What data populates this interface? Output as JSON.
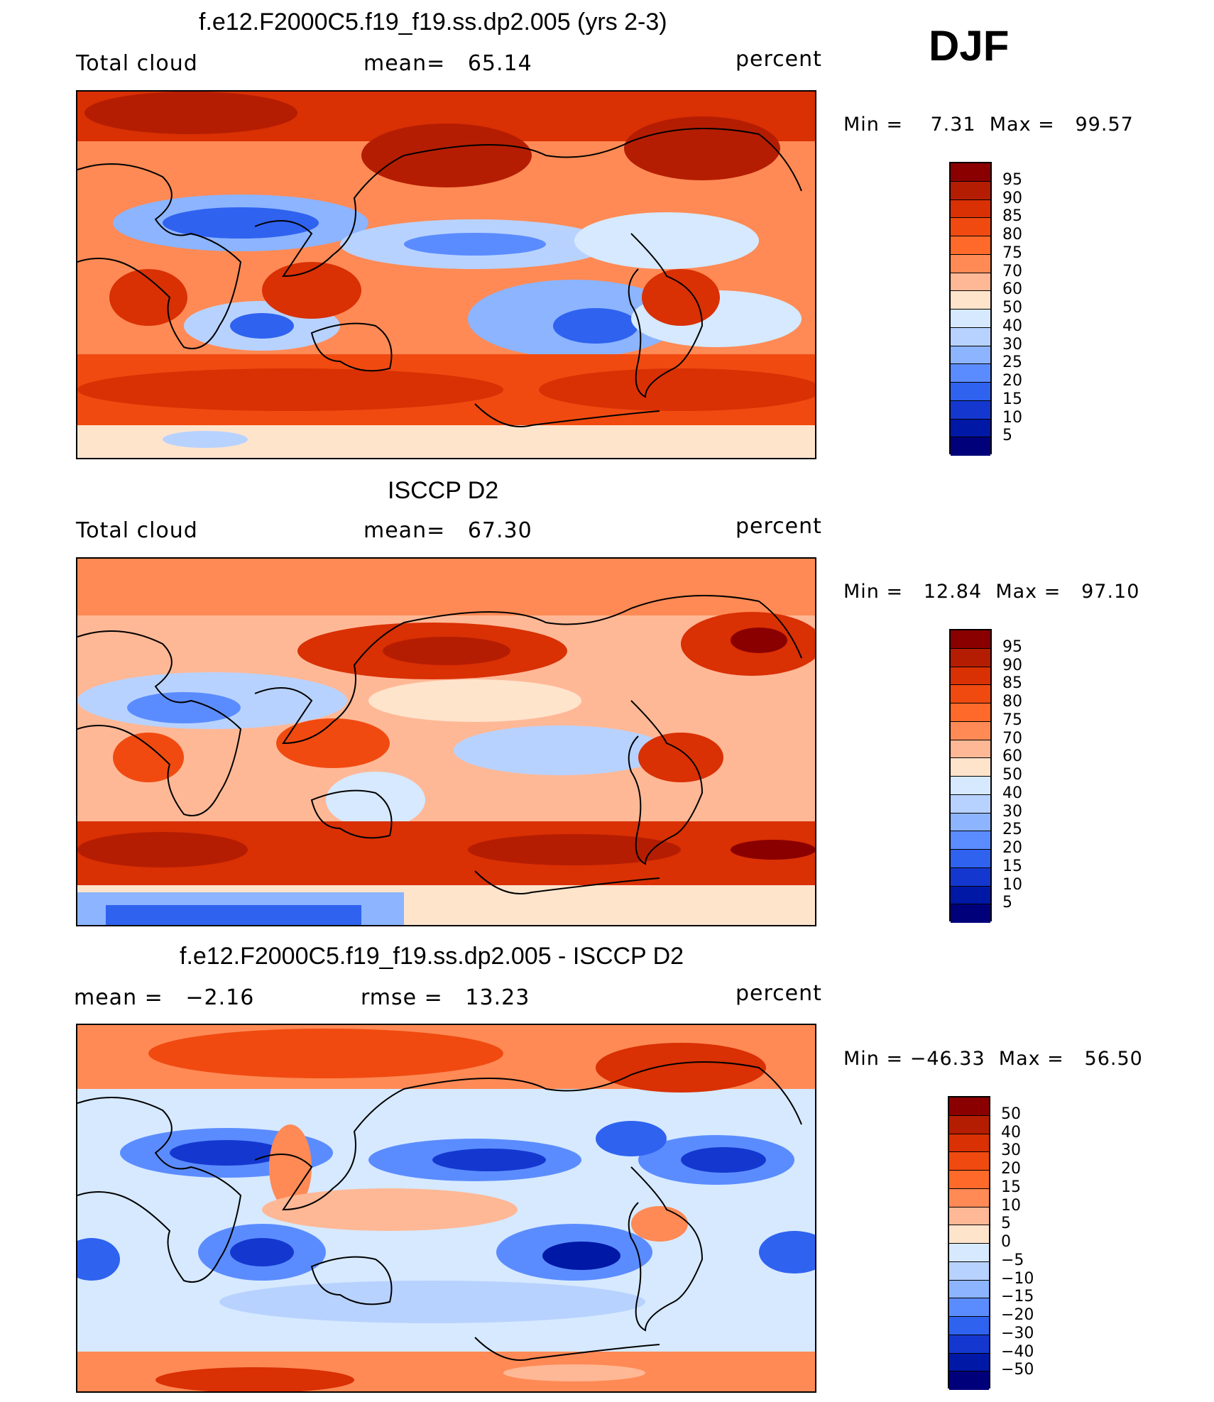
{
  "season": "DJF",
  "panels": [
    {
      "title": "f.e12.F2000C5.f19_f19.ss.dp2.005 (yrs 2-3)",
      "left_label": "Total cloud",
      "center_label": "mean=   65.14",
      "right_label": "percent",
      "minmax": "Min =    7.31  Max =   99.57",
      "colorbar": {
        "labels": [
          "95",
          "90",
          "85",
          "80",
          "75",
          "70",
          "60",
          "50",
          "40",
          "30",
          "25",
          "20",
          "15",
          "10",
          "5"
        ],
        "colors": [
          "#8a0000",
          "#b51d02",
          "#d93004",
          "#f04a10",
          "#ff6a2a",
          "#ff8a55",
          "#ffb896",
          "#ffe4cc",
          "#d6e9ff",
          "#b8d2ff",
          "#8cb4ff",
          "#5b8cff",
          "#2f62ef",
          "#1438cf",
          "#0018a6",
          "#00007a"
        ]
      }
    },
    {
      "title": "ISCCP D2",
      "left_label": "Total cloud",
      "center_label": "mean=   67.30",
      "right_label": "percent",
      "minmax": "Min =   12.84  Max =   97.10",
      "colorbar": {
        "labels": [
          "95",
          "90",
          "85",
          "80",
          "75",
          "70",
          "60",
          "50",
          "40",
          "30",
          "25",
          "20",
          "15",
          "10",
          "5"
        ],
        "colors": [
          "#8a0000",
          "#b51d02",
          "#d93004",
          "#f04a10",
          "#ff6a2a",
          "#ff8a55",
          "#ffb896",
          "#ffe4cc",
          "#d6e9ff",
          "#b8d2ff",
          "#8cb4ff",
          "#5b8cff",
          "#2f62ef",
          "#1438cf",
          "#0018a6",
          "#00007a"
        ]
      }
    },
    {
      "title": "f.e12.F2000C5.f19_f19.ss.dp2.005 - ISCCP D2",
      "left_label": "mean =   −2.16",
      "center_label": "rmse =   13.23",
      "right_label": "percent",
      "minmax": "Min = −46.33  Max =   56.50",
      "colorbar": {
        "labels": [
          "50",
          "40",
          "30",
          "20",
          "15",
          "10",
          "5",
          "0",
          "−5",
          "−10",
          "−15",
          "−20",
          "−30",
          "−40",
          "−50"
        ],
        "colors": [
          "#8a0000",
          "#b51d02",
          "#d93004",
          "#f04a10",
          "#ff6a2a",
          "#ff8a55",
          "#ffb896",
          "#ffe4cc",
          "#d6e9ff",
          "#b8d2ff",
          "#8cb4ff",
          "#5b8cff",
          "#2f62ef",
          "#1438cf",
          "#0018a6",
          "#00007a"
        ]
      }
    }
  ]
}
